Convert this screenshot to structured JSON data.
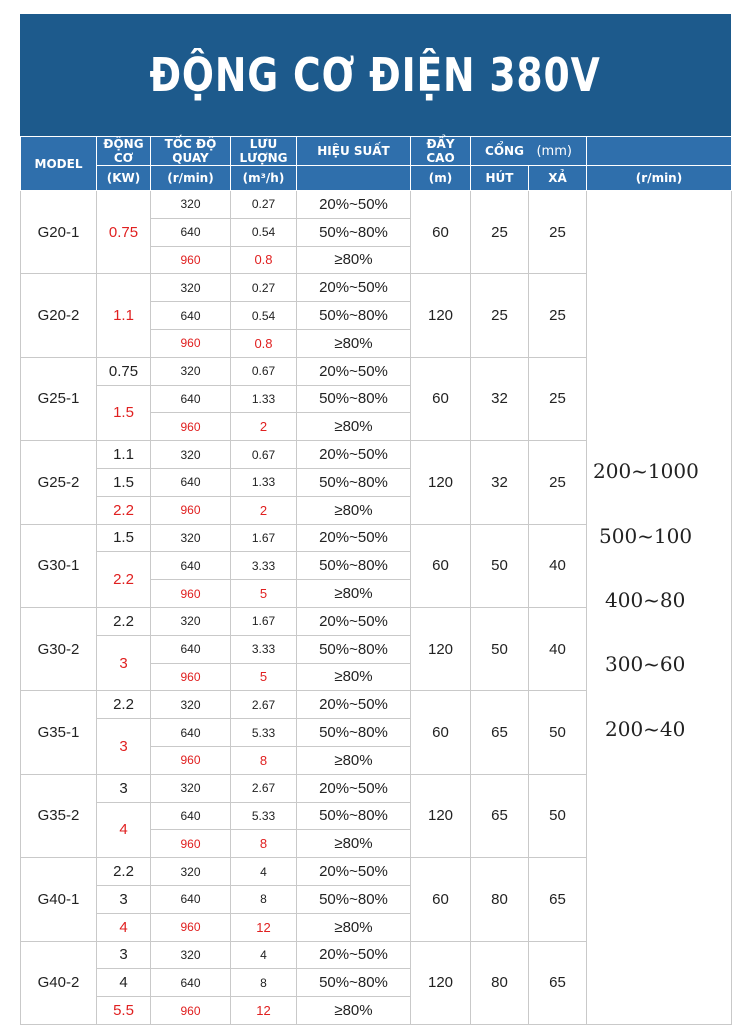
{
  "title": "ĐỘNG CƠ ĐIỆN 380V",
  "header": {
    "model": "MODEL",
    "power": "ĐỘNG CƠ",
    "power_unit": "(KW)",
    "speed": "TỐC ĐỘ QUAY",
    "speed_unit": "(r/min)",
    "flow": "LƯU LƯỢNG",
    "flow_unit": "(m³/h)",
    "efficiency": "HIỆU SUẤT",
    "head": "ĐẨY CAO",
    "head_unit": "(m)",
    "port": "CỔNG",
    "port_unit": "(mm)",
    "suction": "HÚT",
    "discharge": "XẢ",
    "range_unit": "(r/min)"
  },
  "models": [
    {
      "name": "G20-1",
      "head": "60",
      "suction": "25",
      "discharge": "25",
      "rows": [
        {
          "power": "",
          "speed": "320",
          "flow": "0.27",
          "eff": "20%~50%"
        },
        {
          "power": "",
          "speed": "640",
          "flow": "0.54",
          "eff": "50%~80%"
        },
        {
          "power": "",
          "speed": "960",
          "flow": "0.8",
          "eff": "≥80%"
        }
      ],
      "big_power": "0.75"
    },
    {
      "name": "G20-2",
      "head": "120",
      "suction": "25",
      "discharge": "25",
      "rows": [
        {
          "power": "",
          "speed": "320",
          "flow": "0.27",
          "eff": "20%~50%"
        },
        {
          "power": "",
          "speed": "640",
          "flow": "0.54",
          "eff": "50%~80%"
        },
        {
          "power": "",
          "speed": "960",
          "flow": "0.8",
          "eff": "≥80%"
        }
      ],
      "big_power": "1.1"
    },
    {
      "name": "G25-1",
      "head": "60",
      "suction": "32",
      "discharge": "25",
      "rows": [
        {
          "power": "0.75",
          "speed": "320",
          "flow": "0.67",
          "eff": "20%~50%"
        },
        {
          "power": "",
          "speed": "640",
          "flow": "1.33",
          "eff": "50%~80%"
        },
        {
          "power": "",
          "speed": "960",
          "flow": "2",
          "eff": "≥80%"
        }
      ],
      "big_power": "1.5"
    },
    {
      "name": "G25-2",
      "head": "120",
      "suction": "32",
      "discharge": "25",
      "rows": [
        {
          "power": "1.1",
          "speed": "320",
          "flow": "0.67",
          "eff": "20%~50%"
        },
        {
          "power": "1.5",
          "speed": "640",
          "flow": "1.33",
          "eff": "50%~80%"
        },
        {
          "power": "2.2",
          "speed": "960",
          "flow": "2",
          "eff": "≥80%"
        }
      ]
    },
    {
      "name": "G30-1",
      "head": "60",
      "suction": "50",
      "discharge": "40",
      "rows": [
        {
          "power": "1.5",
          "speed": "320",
          "flow": "1.67",
          "eff": "20%~50%"
        },
        {
          "power": "",
          "speed": "640",
          "flow": "3.33",
          "eff": "50%~80%"
        },
        {
          "power": "",
          "speed": "960",
          "flow": "5",
          "eff": "≥80%"
        }
      ],
      "big_power": "2.2"
    },
    {
      "name": "G30-2",
      "head": "120",
      "suction": "50",
      "discharge": "40",
      "rows": [
        {
          "power": "2.2",
          "speed": "320",
          "flow": "1.67",
          "eff": "20%~50%"
        },
        {
          "power": "",
          "speed": "640",
          "flow": "3.33",
          "eff": "50%~80%"
        },
        {
          "power": "",
          "speed": "960",
          "flow": "5",
          "eff": "≥80%"
        }
      ],
      "big_power": "3"
    },
    {
      "name": "G35-1",
      "head": "60",
      "suction": "65",
      "discharge": "50",
      "rows": [
        {
          "power": "2.2",
          "speed": "320",
          "flow": "2.67",
          "eff": "20%~50%"
        },
        {
          "power": "",
          "speed": "640",
          "flow": "5.33",
          "eff": "50%~80%"
        },
        {
          "power": "",
          "speed": "960",
          "flow": "8",
          "eff": "≥80%"
        }
      ],
      "big_power": "3"
    },
    {
      "name": "G35-2",
      "head": "120",
      "suction": "65",
      "discharge": "50",
      "rows": [
        {
          "power": "3",
          "speed": "320",
          "flow": "2.67",
          "eff": "20%~50%"
        },
        {
          "power": "",
          "speed": "640",
          "flow": "5.33",
          "eff": "50%~80%"
        },
        {
          "power": "",
          "speed": "960",
          "flow": "8",
          "eff": "≥80%"
        }
      ],
      "big_power": "4"
    },
    {
      "name": "G40-1",
      "head": "60",
      "suction": "80",
      "discharge": "65",
      "rows": [
        {
          "power": "2.2",
          "speed": "320",
          "flow": "4",
          "eff": "20%~50%"
        },
        {
          "power": "3",
          "speed": "640",
          "flow": "8",
          "eff": "50%~80%"
        },
        {
          "power": "4",
          "speed": "960",
          "flow": "12",
          "eff": "≥80%"
        }
      ]
    },
    {
      "name": "G40-2",
      "head": "120",
      "suction": "80",
      "discharge": "65",
      "rows": [
        {
          "power": "3",
          "speed": "320",
          "flow": "4",
          "eff": "20%~50%"
        },
        {
          "power": "4",
          "speed": "640",
          "flow": "8",
          "eff": "50%~80%"
        },
        {
          "power": "5.5",
          "speed": "960",
          "flow": "12",
          "eff": "≥80%"
        }
      ]
    }
  ],
  "speed_ranges": [
    "200~1000",
    "500~100",
    "400~80",
    "300~60",
    "200~40"
  ],
  "colors": {
    "banner": "#1d5a8c",
    "header": "#2f6fac",
    "highlight": "#e02020"
  }
}
